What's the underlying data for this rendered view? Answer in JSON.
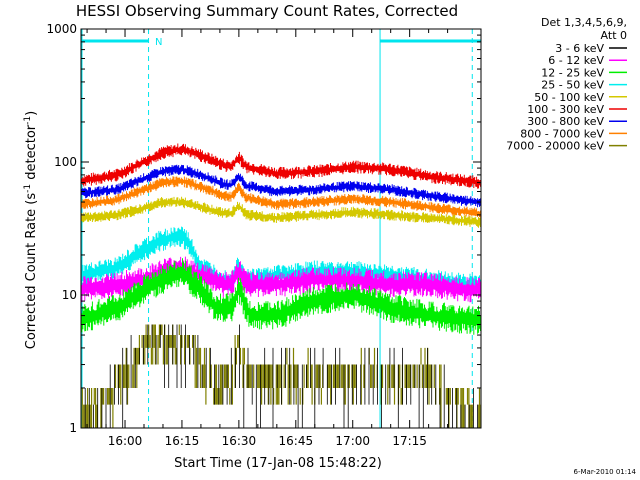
{
  "chart_data": {
    "type": "line",
    "title": "HESSI Observing Summary Count Rates, Corrected",
    "xlabel": "Start Time (17-Jan-08 15:48:22)",
    "ylabel_main": "Corrected Count Rate (s",
    "ylabel_sup1": "-1",
    "ylabel_mid": " detector",
    "ylabel_sup2": "-1",
    "ylabel_end": ")",
    "x_tick_labels": [
      "16:00",
      "16:15",
      "16:30",
      "16:45",
      "17:00",
      "17:15"
    ],
    "x_tick_minutes": [
      0,
      15,
      30,
      45,
      60,
      75
    ],
    "xlim_minutes": [
      -11.6,
      93.8
    ],
    "y_scale": "log",
    "ylim": [
      1,
      1000
    ],
    "y_tick_labels": [
      "1",
      "10",
      "100",
      "1000"
    ],
    "legend_header": [
      "Det 1,3,4,5,6,9,",
      "Att 0"
    ],
    "legend_position": "right",
    "footer_date": "6-Mar-2010 01:14",
    "night_marker_label": "N",
    "night_bar_1_minutes": [
      -11.6,
      6.2
    ],
    "night_bar_2_minutes": [
      67.2,
      93.8
    ],
    "dashed_markers_minutes": [
      6.2,
      91.5
    ],
    "solid_marker_minutes": [
      67.2
    ],
    "marker_color": "#00e5ee",
    "series": [
      {
        "name": "3 - 6 keV",
        "color": "#000000"
      },
      {
        "name": "6 - 12 keV",
        "color": "#ff00ff"
      },
      {
        "name": "12 - 25 keV",
        "color": "#00ee00"
      },
      {
        "name": "25 - 50 keV",
        "color": "#00eeee"
      },
      {
        "name": "50 - 100 keV",
        "color": "#d4c800"
      },
      {
        "name": "100 - 300 keV",
        "color": "#ee0000"
      },
      {
        "name": "300 - 800 keV",
        "color": "#0000ee"
      },
      {
        "name": "800 - 7000 keV",
        "color": "#ff8000"
      },
      {
        "name": "7000 - 20000 keV",
        "color": "#808000"
      }
    ],
    "curves": [
      {
        "series": "100 - 300 keV",
        "noise": 0.035,
        "points": [
          [
            -11.6,
            72
          ],
          [
            -2,
            80
          ],
          [
            5,
            100
          ],
          [
            10,
            118
          ],
          [
            15,
            125
          ],
          [
            20,
            112
          ],
          [
            26,
            95
          ],
          [
            28,
            92
          ],
          [
            30,
            108
          ],
          [
            32,
            92
          ],
          [
            40,
            82
          ],
          [
            50,
            85
          ],
          [
            60,
            92
          ],
          [
            70,
            88
          ],
          [
            80,
            78
          ],
          [
            90,
            72
          ],
          [
            93.8,
            70
          ]
        ]
      },
      {
        "series": "300 - 800 keV",
        "noise": 0.03,
        "points": [
          [
            -11.6,
            58
          ],
          [
            -2,
            62
          ],
          [
            5,
            75
          ],
          [
            10,
            85
          ],
          [
            15,
            88
          ],
          [
            20,
            80
          ],
          [
            26,
            68
          ],
          [
            28,
            67
          ],
          [
            30,
            78
          ],
          [
            32,
            66
          ],
          [
            40,
            60
          ],
          [
            50,
            62
          ],
          [
            60,
            66
          ],
          [
            70,
            62
          ],
          [
            80,
            56
          ],
          [
            90,
            51
          ],
          [
            93.8,
            50
          ]
        ]
      },
      {
        "series": "800 - 7000 keV",
        "noise": 0.03,
        "points": [
          [
            -11.6,
            48
          ],
          [
            -2,
            52
          ],
          [
            5,
            62
          ],
          [
            10,
            70
          ],
          [
            15,
            72
          ],
          [
            20,
            65
          ],
          [
            26,
            56
          ],
          [
            28,
            55
          ],
          [
            30,
            64
          ],
          [
            32,
            54
          ],
          [
            40,
            48
          ],
          [
            50,
            50
          ],
          [
            60,
            53
          ],
          [
            70,
            50
          ],
          [
            80,
            46
          ],
          [
            90,
            42
          ],
          [
            93.8,
            41
          ]
        ]
      },
      {
        "series": "50 - 100 keV",
        "noise": 0.03,
        "points": [
          [
            -11.6,
            38
          ],
          [
            -2,
            40
          ],
          [
            5,
            45
          ],
          [
            10,
            50
          ],
          [
            15,
            50
          ],
          [
            20,
            46
          ],
          [
            26,
            41
          ],
          [
            28,
            41
          ],
          [
            30,
            47
          ],
          [
            32,
            40
          ],
          [
            40,
            38
          ],
          [
            50,
            40
          ],
          [
            60,
            42
          ],
          [
            70,
            40
          ],
          [
            80,
            38
          ],
          [
            90,
            36
          ],
          [
            93.8,
            35
          ]
        ]
      },
      {
        "series": "25 - 50 keV",
        "noise": 0.06,
        "points": [
          [
            -11.6,
            14
          ],
          [
            -2,
            16
          ],
          [
            5,
            22
          ],
          [
            10,
            26
          ],
          [
            15,
            28
          ],
          [
            17,
            24
          ],
          [
            20,
            16
          ],
          [
            26,
            13
          ],
          [
            28,
            13
          ],
          [
            30,
            17
          ],
          [
            32,
            13
          ],
          [
            40,
            14
          ],
          [
            50,
            15
          ],
          [
            60,
            15
          ],
          [
            70,
            14
          ],
          [
            80,
            13
          ],
          [
            90,
            12
          ],
          [
            93.8,
            12
          ]
        ]
      },
      {
        "series": "6 - 12 keV",
        "noise": 0.07,
        "points": [
          [
            -11.6,
            11
          ],
          [
            -2,
            12
          ],
          [
            5,
            13
          ],
          [
            10,
            15
          ],
          [
            15,
            16
          ],
          [
            20,
            14
          ],
          [
            26,
            12
          ],
          [
            28,
            12
          ],
          [
            30,
            15
          ],
          [
            32,
            12
          ],
          [
            40,
            12
          ],
          [
            50,
            13
          ],
          [
            60,
            13
          ],
          [
            70,
            12
          ],
          [
            80,
            12
          ],
          [
            90,
            11
          ],
          [
            93.8,
            11
          ]
        ]
      },
      {
        "series": "12 - 25 keV",
        "noise": 0.08,
        "points": [
          [
            -11.6,
            6.5
          ],
          [
            -2,
            8
          ],
          [
            5,
            11
          ],
          [
            10,
            13
          ],
          [
            15,
            15
          ],
          [
            20,
            11
          ],
          [
            24,
            8
          ],
          [
            28,
            8
          ],
          [
            30,
            11
          ],
          [
            33,
            7
          ],
          [
            40,
            7
          ],
          [
            50,
            9
          ],
          [
            60,
            10
          ],
          [
            70,
            8
          ],
          [
            80,
            7
          ],
          [
            90,
            6.5
          ],
          [
            93.8,
            6.5
          ]
        ]
      },
      {
        "series": "7000 - 20000 keV",
        "noise": 0.0,
        "points": [
          [
            -11.6,
            1.5
          ],
          [
            -5,
            2
          ],
          [
            0,
            3
          ],
          [
            5,
            5
          ],
          [
            10,
            6
          ],
          [
            15,
            5.5
          ],
          [
            20,
            3.5
          ],
          [
            25,
            2.5
          ],
          [
            28,
            3
          ],
          [
            30,
            5
          ],
          [
            32,
            3
          ],
          [
            40,
            3
          ],
          [
            55,
            3
          ],
          [
            70,
            3
          ],
          [
            80,
            3
          ],
          [
            85,
            2
          ],
          [
            93.8,
            1.5
          ]
        ]
      }
    ]
  }
}
